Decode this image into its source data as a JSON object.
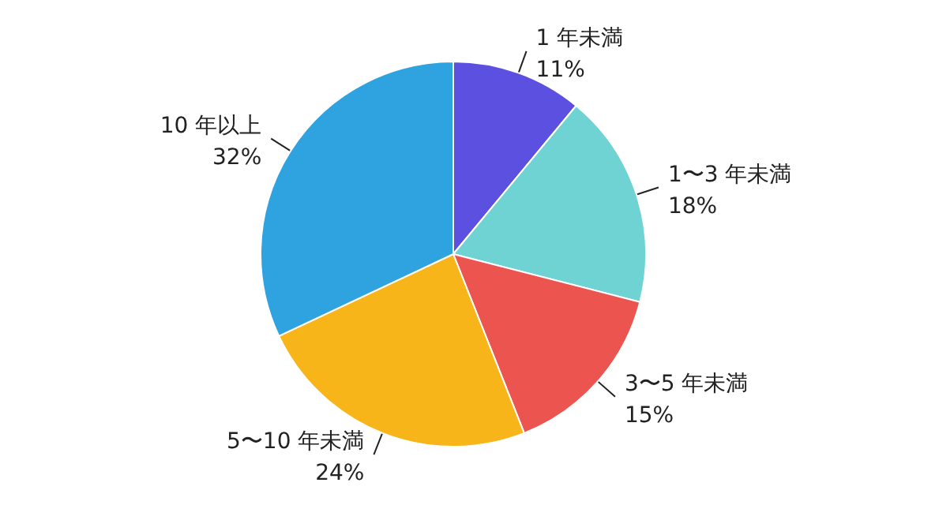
{
  "chart_data": {
    "type": "pie",
    "categories": [
      "1 年未満",
      "1〜3 年未満",
      "3〜5 年未満",
      "5〜10 年未満",
      "10 年以上"
    ],
    "values": [
      11,
      18,
      15,
      24,
      32
    ],
    "value_labels": [
      "11%",
      "18%",
      "15%",
      "24%",
      "32%"
    ],
    "colors": [
      "#5b50e0",
      "#6fd3d3",
      "#ec5450",
      "#f8b51a",
      "#2ea3e0"
    ]
  }
}
